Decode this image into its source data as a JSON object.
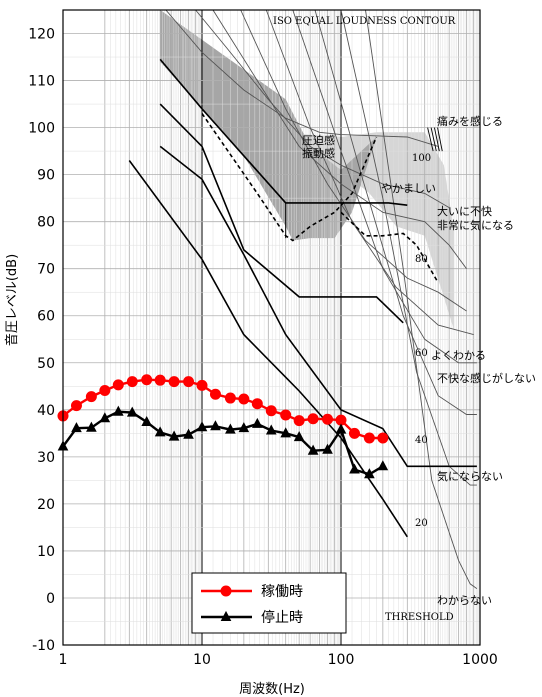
{
  "chart_data": {
    "type": "line",
    "title": "",
    "xlabel": "周波数(Hz)",
    "ylabel": "音圧レベル(dB)",
    "x_scale": "log",
    "xlim": [
      1,
      1000
    ],
    "ylim": [
      -10,
      125
    ],
    "x_ticks": [
      "1",
      "10",
      "100",
      "1000"
    ],
    "y_ticks": [
      "-10",
      "0",
      "10",
      "20",
      "30",
      "40",
      "50",
      "60",
      "70",
      "80",
      "90",
      "100",
      "110",
      "120"
    ],
    "grid": true,
    "legend_position": "bottom-center",
    "series": [
      {
        "name": "稼働時",
        "color": "#ff0000",
        "marker": "circle",
        "x": [
          1,
          1.25,
          1.6,
          2,
          2.5,
          3.15,
          4,
          5,
          6.3,
          8,
          10,
          12.5,
          16,
          20,
          25,
          31.5,
          40,
          50,
          63,
          80,
          100,
          125,
          160,
          200
        ],
        "y": [
          38.7,
          40.9,
          42.8,
          44.1,
          45.3,
          46.0,
          46.4,
          46.3,
          46.0,
          46.0,
          45.2,
          43.3,
          42.5,
          42.3,
          41.3,
          39.8,
          38.9,
          37.7,
          38.1,
          38.0,
          37.8,
          35.0,
          34.0,
          34.0
        ]
      },
      {
        "name": "停止時",
        "color": "#000000",
        "marker": "triangle",
        "x": [
          1,
          1.25,
          1.6,
          2,
          2.5,
          3.15,
          4,
          5,
          6.3,
          8,
          10,
          12.5,
          16,
          20,
          25,
          31.5,
          40,
          50,
          63,
          80,
          100,
          125,
          160,
          200
        ],
        "y": [
          32.2,
          36.1,
          36.2,
          38.2,
          39.6,
          39.4,
          37.4,
          35.2,
          34.3,
          34.7,
          36.3,
          36.5,
          35.8,
          36.1,
          37.0,
          35.6,
          35.0,
          34.2,
          31.3,
          31.5,
          35.8,
          27.3,
          26.3,
          28.0
        ]
      }
    ],
    "annotations": {
      "iso_title": "ISO EQUAL LOUDNESS CONTOUR",
      "threshold": "THRESHOLD",
      "pressure": "圧迫感",
      "vibration": "振動感",
      "pain": "痛みを感じる",
      "noisy": "やかましい",
      "very_unpleasant": "大いに不快",
      "very_bothersome": "非常に気になる",
      "well_perceived": "よくわかる",
      "unpleasant_feeling": "不快な感じがしない",
      "not_bothersome": "気にならない",
      "imperceptible": "わからない",
      "contour_100": "100",
      "contour_80": "80",
      "contour_60": "60",
      "contour_40": "40",
      "contour_20": "20"
    }
  }
}
